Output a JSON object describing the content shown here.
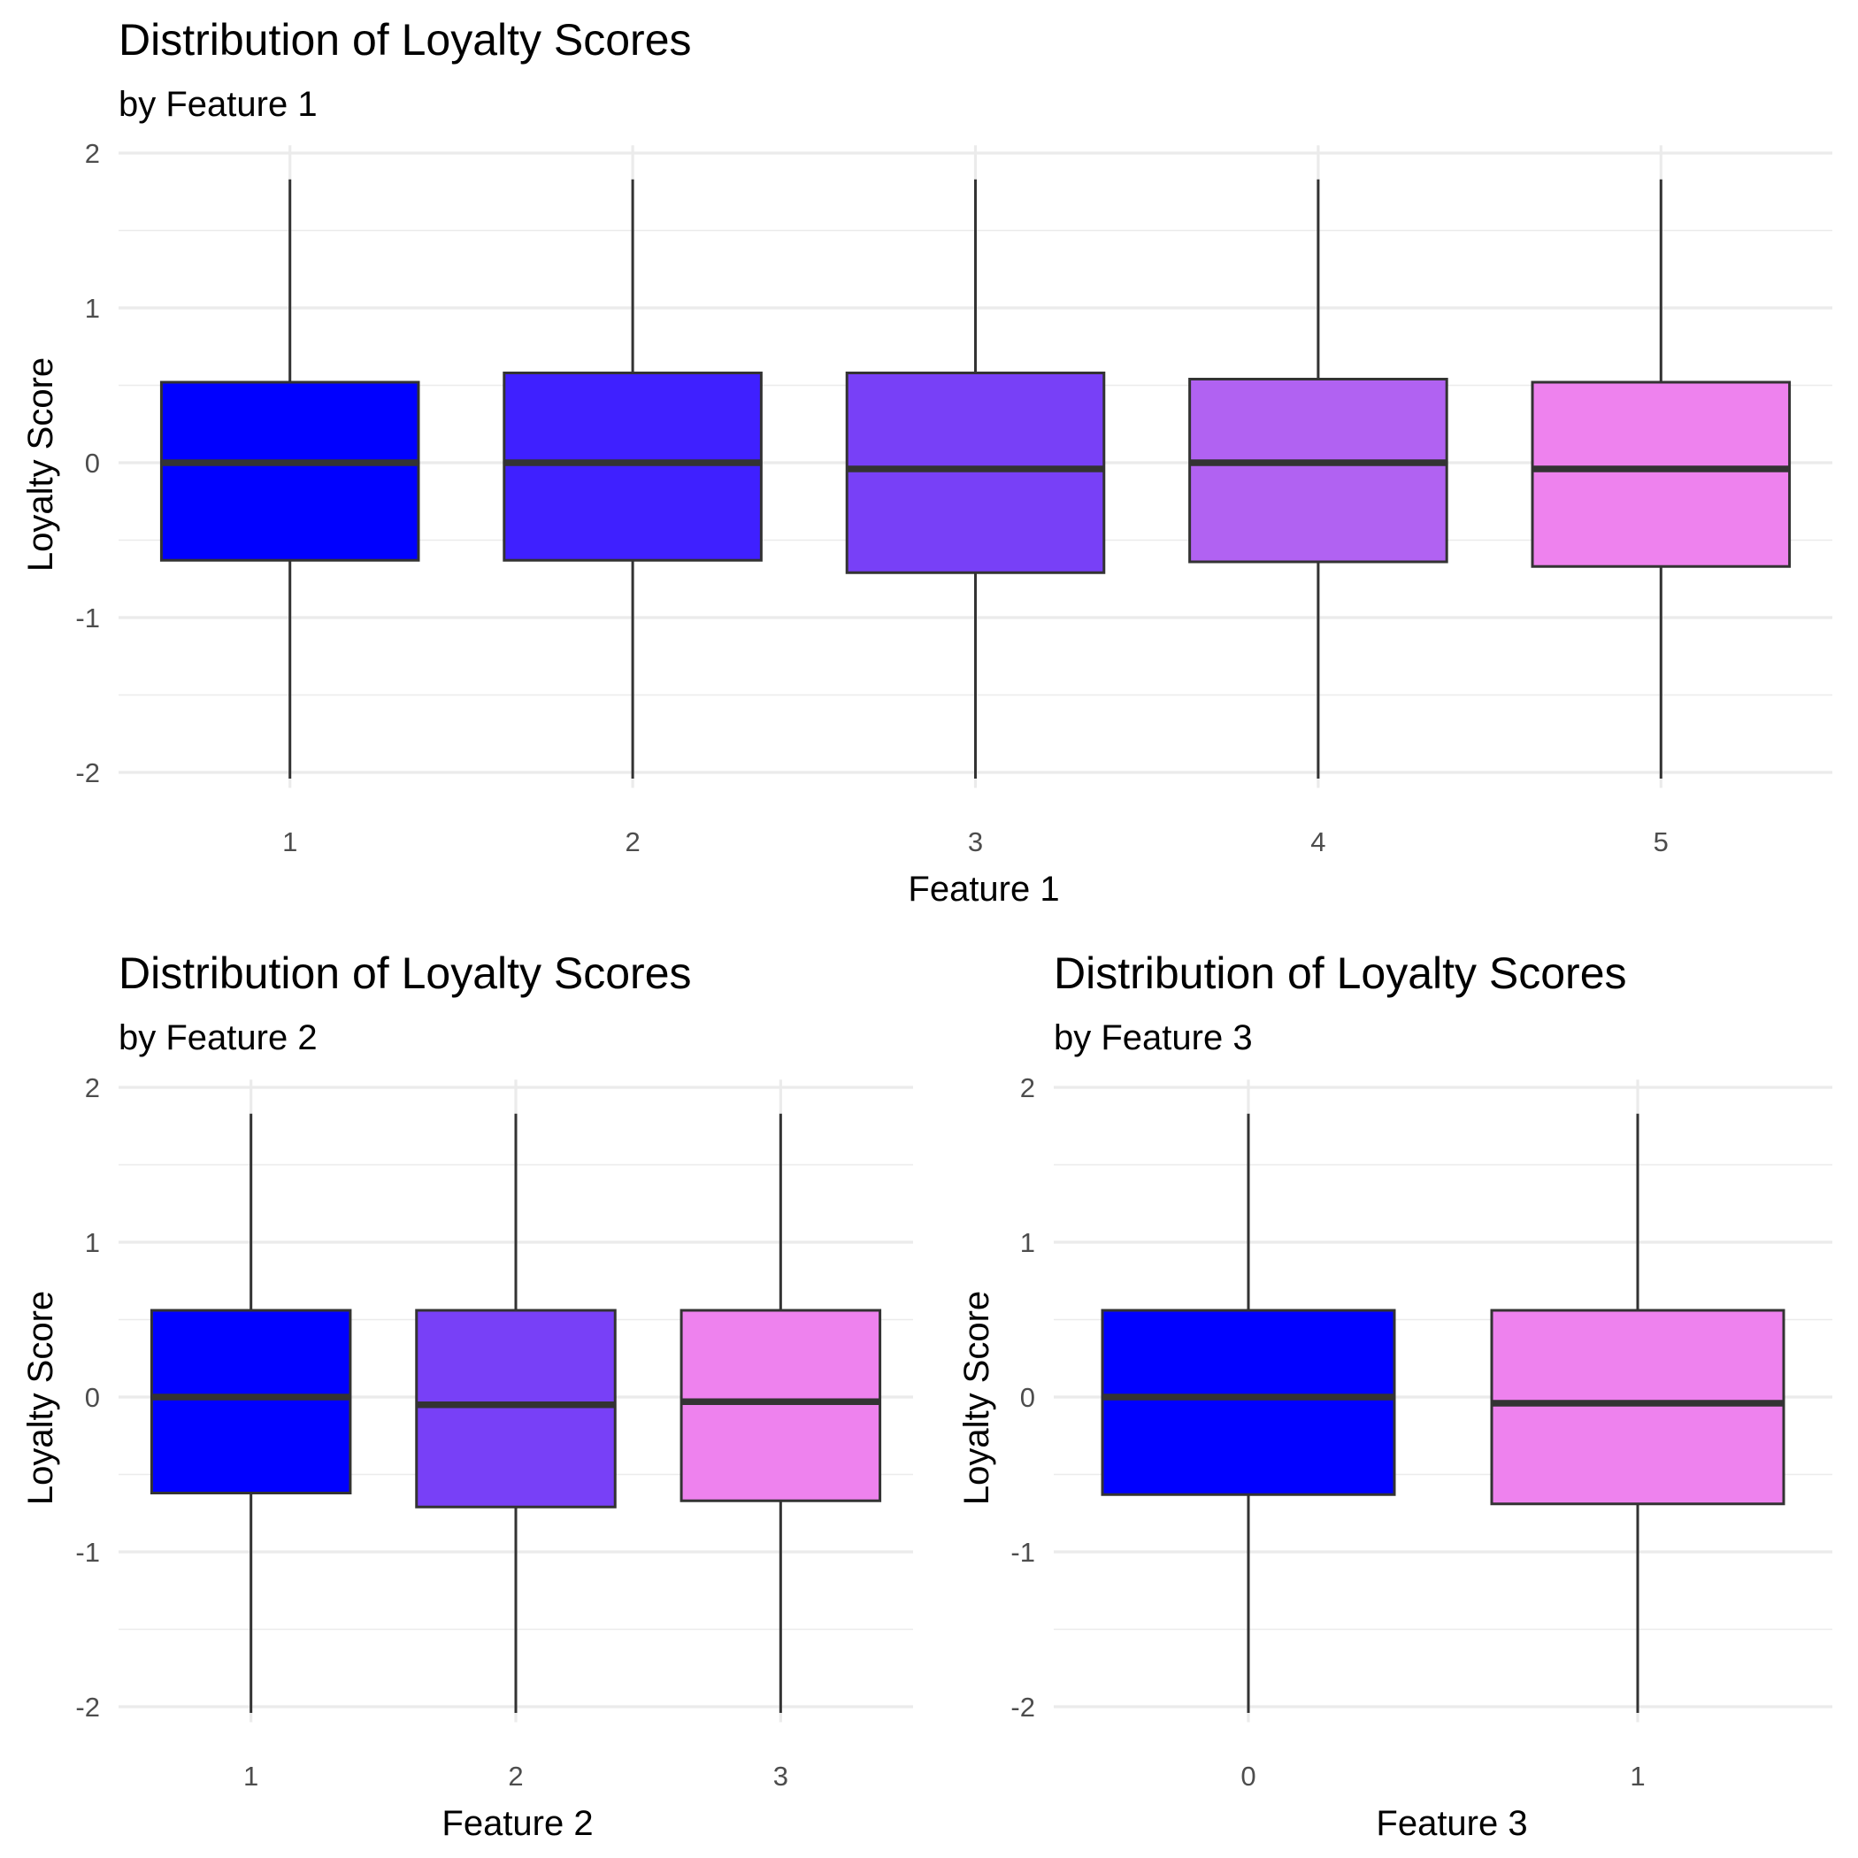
{
  "chart_data": [
    {
      "type": "box",
      "title": "Distribution of Loyalty Scores",
      "subtitle": "by Feature 1",
      "xlabel": "Feature 1",
      "ylabel": "Loyalty Score",
      "ylim": [
        -2.1,
        2.05
      ],
      "yticks": [
        2,
        1,
        0,
        -1,
        -2
      ],
      "ytick_labels": [
        "2",
        "1",
        "0",
        "-1",
        "-2"
      ],
      "grid": true,
      "categories": [
        "1",
        "2",
        "3",
        "4",
        "5"
      ],
      "boxes": [
        {
          "whisker_low": -2.04,
          "q1": -0.63,
          "median": 0.0,
          "q3": 0.52,
          "whisker_high": 1.83,
          "color": "#0000FF"
        },
        {
          "whisker_low": -2.04,
          "q1": -0.63,
          "median": 0.0,
          "q3": 0.58,
          "whisker_high": 1.83,
          "color": "#3F20FF"
        },
        {
          "whisker_low": -2.04,
          "q1": -0.71,
          "median": -0.04,
          "q3": 0.58,
          "whisker_high": 1.83,
          "color": "#7840F7"
        },
        {
          "whisker_low": -2.04,
          "q1": -0.64,
          "median": 0.0,
          "q3": 0.54,
          "whisker_high": 1.83,
          "color": "#B162F2"
        },
        {
          "whisker_low": -2.04,
          "q1": -0.67,
          "median": -0.04,
          "q3": 0.52,
          "whisker_high": 1.83,
          "color": "#EE82EE"
        }
      ]
    },
    {
      "type": "box",
      "title": "Distribution of Loyalty Scores",
      "subtitle": "by Feature 2",
      "xlabel": "Feature 2",
      "ylabel": "Loyalty Score",
      "ylim": [
        -2.1,
        2.05
      ],
      "yticks": [
        2,
        1,
        0,
        -1,
        -2
      ],
      "ytick_labels": [
        "2",
        "1",
        "0",
        "-1",
        "-2"
      ],
      "grid": true,
      "categories": [
        "1",
        "2",
        "3"
      ],
      "boxes": [
        {
          "whisker_low": -2.04,
          "q1": -0.62,
          "median": 0.0,
          "q3": 0.56,
          "whisker_high": 1.83,
          "color": "#0000FF"
        },
        {
          "whisker_low": -2.04,
          "q1": -0.71,
          "median": -0.05,
          "q3": 0.56,
          "whisker_high": 1.83,
          "color": "#7840F7"
        },
        {
          "whisker_low": -2.04,
          "q1": -0.67,
          "median": -0.03,
          "q3": 0.56,
          "whisker_high": 1.83,
          "color": "#EE82EE"
        }
      ]
    },
    {
      "type": "box",
      "title": "Distribution of Loyalty Scores",
      "subtitle": "by Feature 3",
      "xlabel": "Feature 3",
      "ylabel": "Loyalty Score",
      "ylim": [
        -2.1,
        2.05
      ],
      "yticks": [
        2,
        1,
        0,
        -1,
        -2
      ],
      "ytick_labels": [
        "2",
        "1",
        "0",
        "-1",
        "-2"
      ],
      "grid": true,
      "categories": [
        "0",
        "1"
      ],
      "boxes": [
        {
          "whisker_low": -2.04,
          "q1": -0.63,
          "median": 0.0,
          "q3": 0.56,
          "whisker_high": 1.83,
          "color": "#0000FF"
        },
        {
          "whisker_low": -2.04,
          "q1": -0.69,
          "median": -0.04,
          "q3": 0.56,
          "whisker_high": 1.83,
          "color": "#EE82EE"
        }
      ]
    }
  ]
}
